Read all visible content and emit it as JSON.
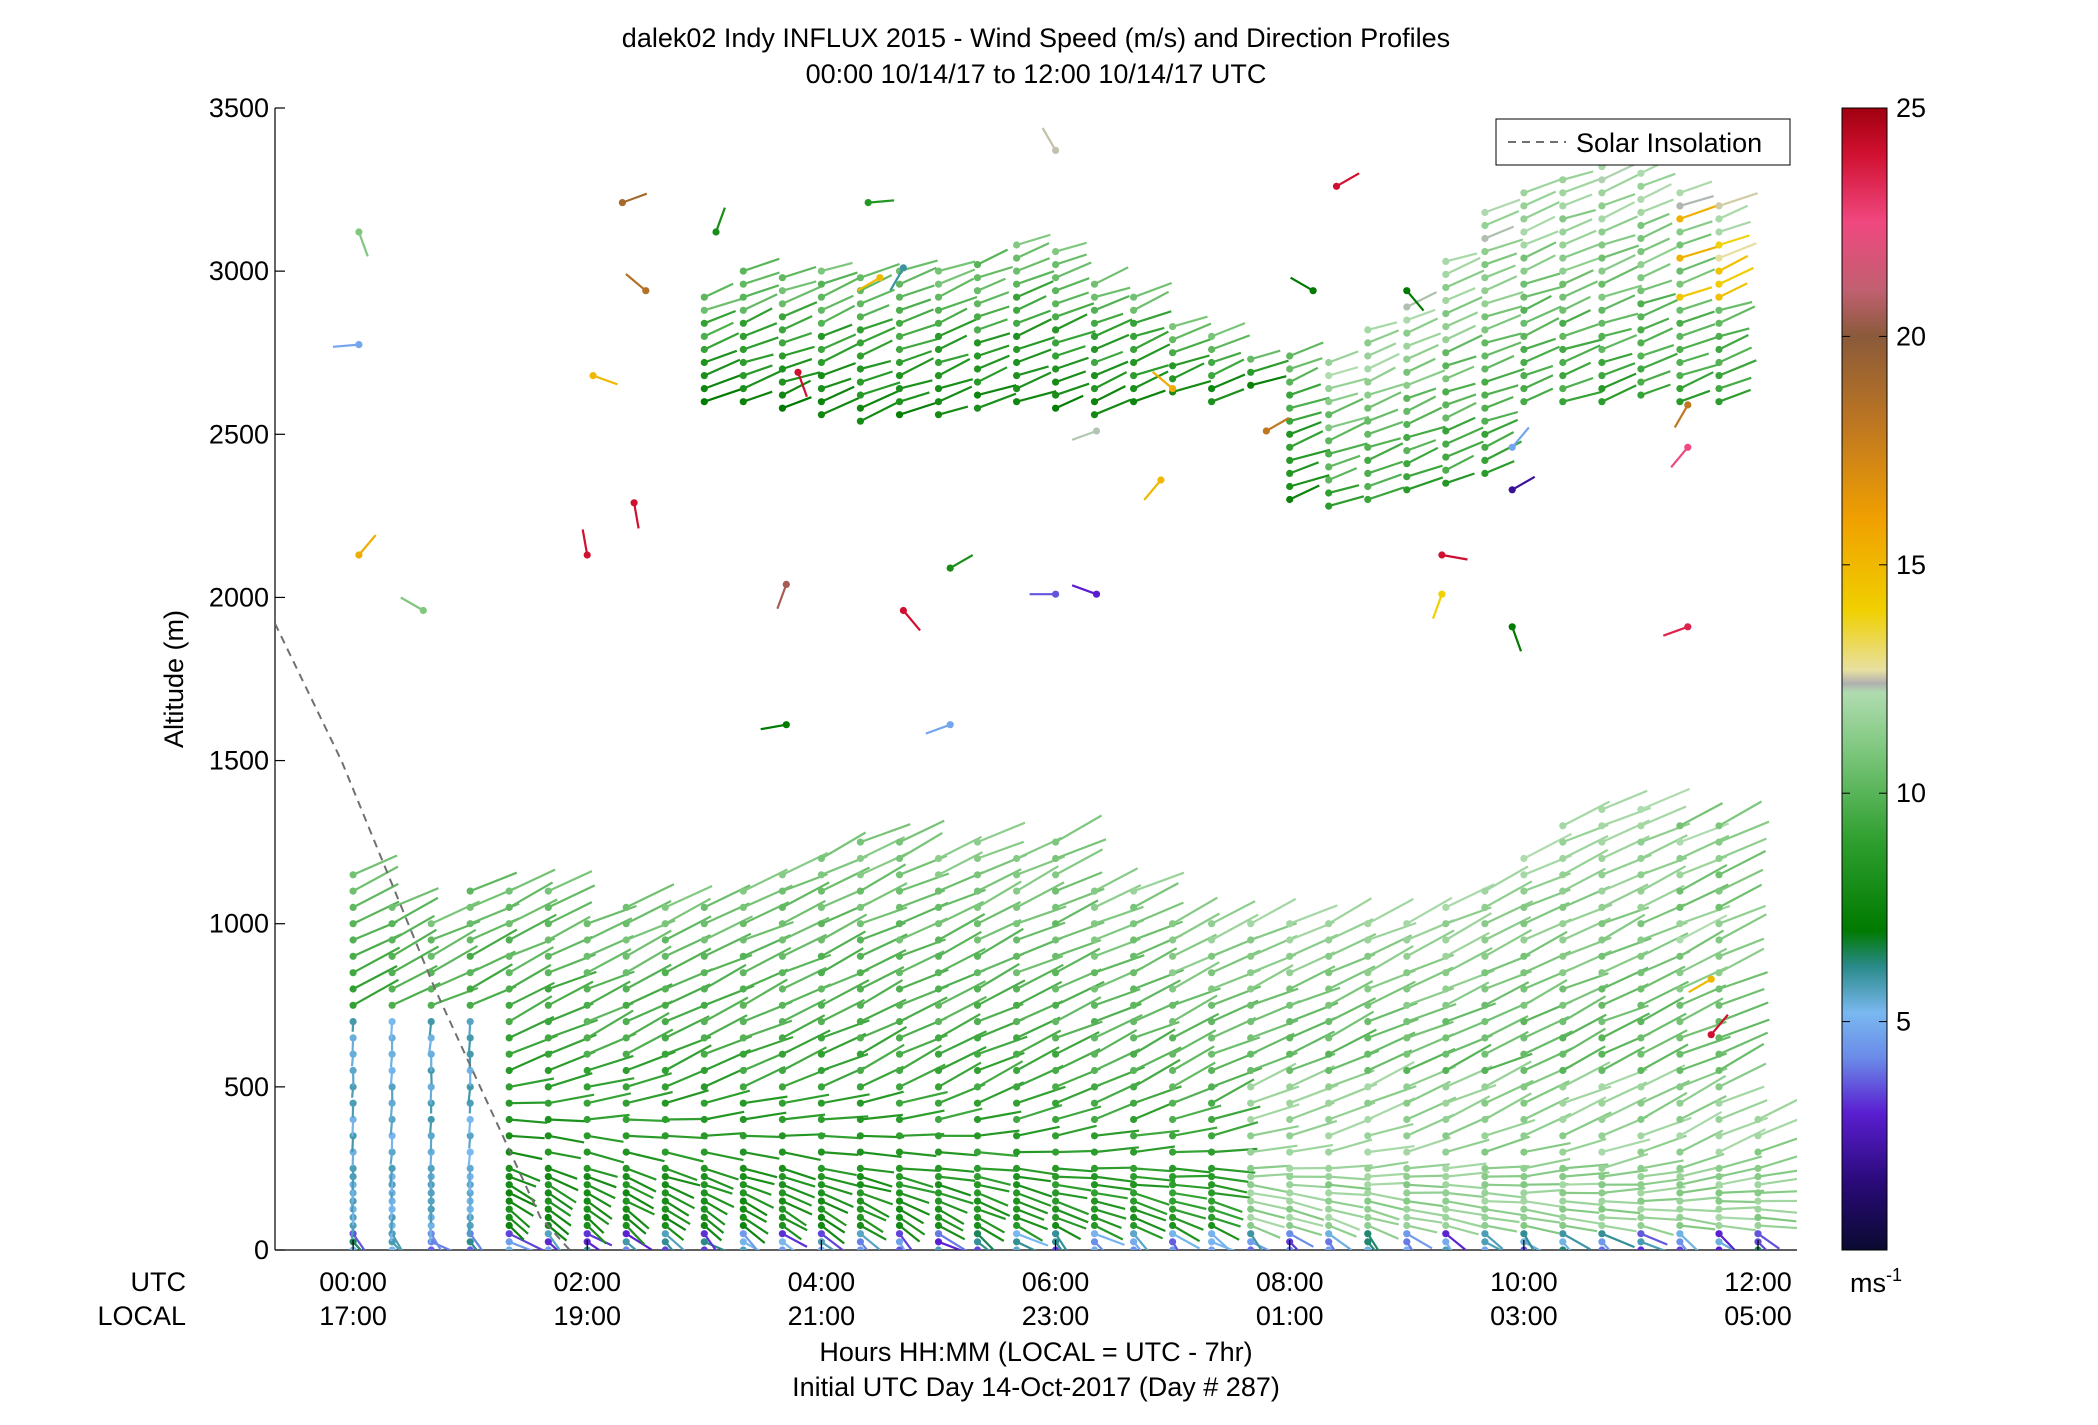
{
  "chart_data": {
    "type": "scatter",
    "title": "dalek02 Indy INFLUX 2015 - Wind Speed (m/s) and Direction Profiles",
    "subtitle": "00:00 10/14/17 to 12:00 10/14/17  UTC",
    "ylabel": "Altitude (m)",
    "xlabel": "Hours HH:MM  (LOCAL = UTC - 7hr)",
    "xlabel2": "Initial UTC Day 14-Oct-2017 (Day # 287)",
    "xlim": [
      -0.667,
      12.333
    ],
    "ylim": [
      0,
      3500
    ],
    "yticks": [
      "0",
      "500",
      "1000",
      "1500",
      "2000",
      "2500",
      "3000",
      "3500"
    ],
    "ytick_values": [
      0,
      500,
      1000,
      1500,
      2000,
      2500,
      3000,
      3500
    ],
    "xtick_values": [
      0,
      2,
      4,
      6,
      8,
      10,
      12
    ],
    "utc_row_label": "UTC",
    "local_row_label": "LOCAL",
    "utc_ticks": [
      "00:00",
      "02:00",
      "04:00",
      "06:00",
      "08:00",
      "10:00",
      "12:00"
    ],
    "local_ticks": [
      "17:00",
      "19:00",
      "21:00",
      "23:00",
      "01:00",
      "03:00",
      "05:00"
    ],
    "legend": {
      "entries": [
        "Solar Insolation"
      ],
      "position": "top-right",
      "style": "dashed",
      "color": "#707070"
    },
    "solar_insolation": {
      "x": [
        -0.667,
        -0.1,
        0.3,
        0.7,
        1.15,
        1.6,
        1.85
      ],
      "y": [
        1920,
        1500,
        1150,
        800,
        450,
        100,
        0
      ]
    },
    "colorbar": {
      "ticks": [
        "5",
        "10",
        "15",
        "20",
        "25"
      ],
      "tick_values": [
        5,
        10,
        15,
        20,
        25
      ],
      "range": [
        0,
        25
      ],
      "unit": "ms-1",
      "stops": [
        {
          "v": 0,
          "c": "#0a0a30"
        },
        {
          "v": 1.5,
          "c": "#2a0a7a"
        },
        {
          "v": 3,
          "c": "#5a1ed0"
        },
        {
          "v": 4.2,
          "c": "#6a8ae8"
        },
        {
          "v": 5.2,
          "c": "#7ab8f0"
        },
        {
          "v": 6.2,
          "c": "#2a8a8a"
        },
        {
          "v": 7,
          "c": "#007a00"
        },
        {
          "v": 9,
          "c": "#30a030"
        },
        {
          "v": 11,
          "c": "#80c880"
        },
        {
          "v": 12.2,
          "c": "#b0dcb0"
        },
        {
          "v": 12.4,
          "c": "#b0b0b0"
        },
        {
          "v": 12.7,
          "c": "#e8e0a0"
        },
        {
          "v": 14,
          "c": "#f0d000"
        },
        {
          "v": 16,
          "c": "#f0a000"
        },
        {
          "v": 18,
          "c": "#c07820"
        },
        {
          "v": 20,
          "c": "#8a5a3a"
        },
        {
          "v": 21,
          "c": "#c06070"
        },
        {
          "v": 22.5,
          "c": "#f04880"
        },
        {
          "v": 24,
          "c": "#d01030"
        },
        {
          "v": 25,
          "c": "#a00010"
        }
      ]
    },
    "colors": {
      "dark_green": "#008000",
      "green": "#3aa53a",
      "light_green": "#8ccc8c",
      "blue": "#6a9ae8",
      "purple": "#5020d0",
      "yellow": "#f0c000",
      "orange": "#f0a000",
      "brown": "#b07030",
      "red": "#c00020",
      "pink": "#f04880",
      "gray": "#b0b0b0"
    },
    "profile_times": [
      0,
      0.333,
      0.667,
      1.0,
      1.333,
      1.667,
      2.0,
      2.333,
      2.667,
      3.0,
      3.333,
      3.667,
      4.0,
      4.333,
      4.667,
      5.0,
      5.333,
      5.667,
      6.0,
      6.333,
      6.667,
      7.0,
      7.333,
      7.667,
      8.0,
      8.333,
      8.667,
      9.0,
      9.333,
      9.667,
      10.0,
      10.333,
      10.667,
      11.0,
      11.333,
      11.667,
      12.0
    ],
    "lower_layer_top_m": [
      1170,
      1050,
      1000,
      1130,
      1100,
      1130,
      1000,
      1050,
      1090,
      1080,
      1130,
      1180,
      1220,
      1250,
      1250,
      1230,
      1250,
      1230,
      1250,
      1120,
      1140,
      1000,
      1000,
      1000,
      1000,
      1000,
      1000,
      1000,
      1050,
      1140,
      1240,
      1330,
      1360,
      1380,
      1320,
      1300,
      430
    ],
    "upper_layer_base_m": [
      null,
      null,
      null,
      null,
      null,
      null,
      null,
      null,
      null,
      2600,
      2600,
      2580,
      2560,
      2540,
      2560,
      2560,
      2580,
      2600,
      2580,
      2560,
      2600,
      2630,
      2600,
      2650,
      2300,
      2280,
      2300,
      2330,
      2350,
      2380,
      2600,
      2600,
      2600,
      2620,
      2600,
      2600,
      null
    ],
    "upper_layer_top_m": [
      null,
      null,
      null,
      null,
      null,
      null,
      null,
      null,
      null,
      2950,
      3000,
      3000,
      3010,
      2980,
      3000,
      3020,
      3050,
      3080,
      3060,
      2980,
      2950,
      2830,
      2810,
      2740,
      2760,
      2750,
      2820,
      2920,
      3060,
      3180,
      3240,
      3290,
      3320,
      3300,
      3260,
      3200,
      null
    ],
    "isolated_barbs": [
      {
        "t": 0.05,
        "z": 3120,
        "spd": 11,
        "dir_deg": 160
      },
      {
        "t": 0.05,
        "z": 2775,
        "spd": 4.8,
        "dir_deg": 265
      },
      {
        "t": 0.05,
        "z": 2130,
        "spd": 15.5,
        "dir_deg": 40
      },
      {
        "t": 0.6,
        "z": 1960,
        "spd": 11,
        "dir_deg": 300
      },
      {
        "t": 2.0,
        "z": 2130,
        "spd": 24,
        "dir_deg": 350
      },
      {
        "t": 2.05,
        "z": 2680,
        "spd": 15,
        "dir_deg": 110
      },
      {
        "t": 2.4,
        "z": 2290,
        "spd": 24,
        "dir_deg": 170
      },
      {
        "t": 2.3,
        "z": 3210,
        "spd": 19,
        "dir_deg": 70
      },
      {
        "t": 2.5,
        "z": 2940,
        "spd": 18.5,
        "dir_deg": 310
      },
      {
        "t": 3.1,
        "z": 3120,
        "spd": 8,
        "dir_deg": 20
      },
      {
        "t": 3.8,
        "z": 2690,
        "spd": 24,
        "dir_deg": 160
      },
      {
        "t": 3.7,
        "z": 2040,
        "spd": 20.5,
        "dir_deg": 200
      },
      {
        "t": 3.7,
        "z": 1610,
        "spd": 7,
        "dir_deg": 260
      },
      {
        "t": 4.4,
        "z": 3210,
        "spd": 8.5,
        "dir_deg": 85
      },
      {
        "t": 4.5,
        "z": 2980,
        "spd": 15,
        "dir_deg": 240
      },
      {
        "t": 4.7,
        "z": 3010,
        "spd": 6,
        "dir_deg": 210
      },
      {
        "t": 4.7,
        "z": 1960,
        "spd": 24,
        "dir_deg": 140
      },
      {
        "t": 5.1,
        "z": 1610,
        "spd": 4.8,
        "dir_deg": 250
      },
      {
        "t": 5.1,
        "z": 2090,
        "spd": 8,
        "dir_deg": 60
      },
      {
        "t": 6.0,
        "z": 2010,
        "spd": 3.6,
        "dir_deg": 270
      },
      {
        "t": 6.35,
        "z": 2010,
        "spd": 3,
        "dir_deg": 290
      },
      {
        "t": 6.0,
        "z": 3370,
        "spd": 12.5,
        "dir_deg": 330
      },
      {
        "t": 6.35,
        "z": 2510,
        "spd": 12.3,
        "dir_deg": 250
      },
      {
        "t": 6.9,
        "z": 2360,
        "spd": 15,
        "dir_deg": 220
      },
      {
        "t": 7.0,
        "z": 2640,
        "spd": 15.5,
        "dir_deg": 310
      },
      {
        "t": 7.8,
        "z": 2510,
        "spd": 18,
        "dir_deg": 60
      },
      {
        "t": 8.2,
        "z": 2940,
        "spd": 7,
        "dir_deg": 300
      },
      {
        "t": 8.4,
        "z": 3260,
        "spd": 24,
        "dir_deg": 60
      },
      {
        "t": 9.0,
        "z": 2940,
        "spd": 7,
        "dir_deg": 140
      },
      {
        "t": 9.3,
        "z": 2130,
        "spd": 24,
        "dir_deg": 100
      },
      {
        "t": 9.3,
        "z": 2010,
        "spd": 14,
        "dir_deg": 200
      },
      {
        "t": 9.9,
        "z": 1910,
        "spd": 7,
        "dir_deg": 160
      },
      {
        "t": 9.9,
        "z": 2330,
        "spd": 2,
        "dir_deg": 60
      },
      {
        "t": 9.9,
        "z": 2460,
        "spd": 4.8,
        "dir_deg": 40
      },
      {
        "t": 11.4,
        "z": 1910,
        "spd": 23.5,
        "dir_deg": 250
      },
      {
        "t": 11.4,
        "z": 2460,
        "spd": 22.5,
        "dir_deg": 220
      },
      {
        "t": 11.4,
        "z": 2590,
        "spd": 18,
        "dir_deg": 210
      },
      {
        "t": 11.6,
        "z": 830,
        "spd": 15,
        "dir_deg": 240
      },
      {
        "t": 11.6,
        "z": 660,
        "spd": 24,
        "dir_deg": 40
      }
    ]
  }
}
